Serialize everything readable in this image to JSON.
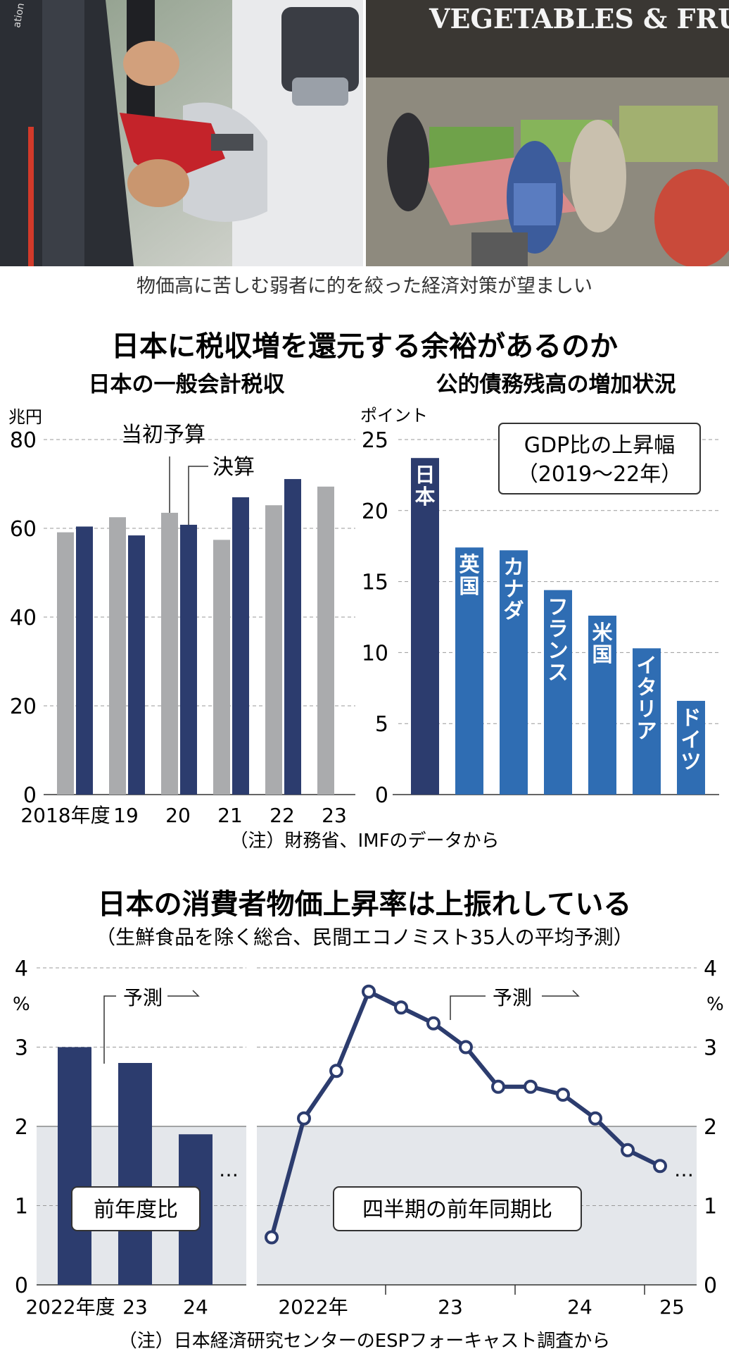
{
  "photos": [
    {
      "name": "fuel-pump-photo",
      "text": "ation"
    },
    {
      "name": "supermarket-photo",
      "text": "VEGETABLES & FRUIT"
    }
  ],
  "caption": "物価高に苦しむ弱者に的を絞った経済対策が望ましい",
  "section1": {
    "title": "日本に税収増を還元する余裕があるのか",
    "note": "（注）財務省、IMFのデータから"
  },
  "section2": {
    "title": "日本の消費者物価上昇率は上振れしている",
    "subtitle": "（生鮮食品を除く総合、民間エコノミスト35人の平均予測）",
    "note": "（注）日本経済研究センターのESPフォーキャスト調査から"
  },
  "colors": {
    "gray": "#aaabad",
    "navy": "#2c3c6e",
    "blue": "#2f6db3",
    "shade": "#e4e7eb",
    "line": "#2c3c6e"
  },
  "chart_data": [
    {
      "type": "bar",
      "title": "日本の一般会計税収",
      "ylabel": "兆円",
      "ylim": [
        0,
        80
      ],
      "yticks": [
        "0",
        "20",
        "40",
        "60",
        "80"
      ],
      "categories": [
        "2018年度",
        "19",
        "20",
        "21",
        "22",
        "23"
      ],
      "series": [
        {
          "name": "当初予算",
          "values": [
            59.1,
            62.5,
            63.5,
            57.4,
            65.2,
            69.4
          ]
        },
        {
          "name": "決算",
          "values": [
            60.4,
            58.4,
            60.8,
            67.0,
            71.1,
            null
          ]
        }
      ]
    },
    {
      "type": "bar",
      "title": "公的債務残高の増加状況",
      "ylabel": "ポイント",
      "ylim": [
        0,
        25
      ],
      "yticks": [
        "0",
        "5",
        "10",
        "15",
        "20",
        "25"
      ],
      "legend_box": [
        "GDP比の上昇幅",
        "（2019〜22年）"
      ],
      "categories": [
        "日本",
        "英国",
        "カナダ",
        "フランス",
        "米国",
        "イタリア",
        "ドイツ"
      ],
      "values": [
        23.7,
        17.4,
        17.2,
        14.4,
        12.6,
        10.3,
        6.6
      ]
    },
    {
      "type": "bar",
      "ylabel": "%",
      "ylim": [
        0,
        4
      ],
      "yticks": [
        "0",
        "1",
        "2",
        "3",
        "4"
      ],
      "categories": [
        "2022年度",
        "23",
        "24"
      ],
      "values": [
        3.0,
        2.8,
        1.9
      ],
      "label_box": "前年度比",
      "forecast_label": "予測",
      "ellipsis": "…"
    },
    {
      "type": "line",
      "ylabel": "%",
      "ylim": [
        0,
        4
      ],
      "yticks": [
        "0",
        "1",
        "2",
        "3",
        "4"
      ],
      "x_labels": [
        "2022年",
        "23",
        "24",
        "25"
      ],
      "values": [
        0.6,
        2.1,
        2.7,
        3.7,
        3.5,
        3.3,
        3.0,
        2.5,
        2.5,
        2.4,
        2.1,
        1.7,
        1.5
      ],
      "label_box": "四半期の前年同期比",
      "forecast_label": "予測",
      "ellipsis": "…"
    }
  ]
}
